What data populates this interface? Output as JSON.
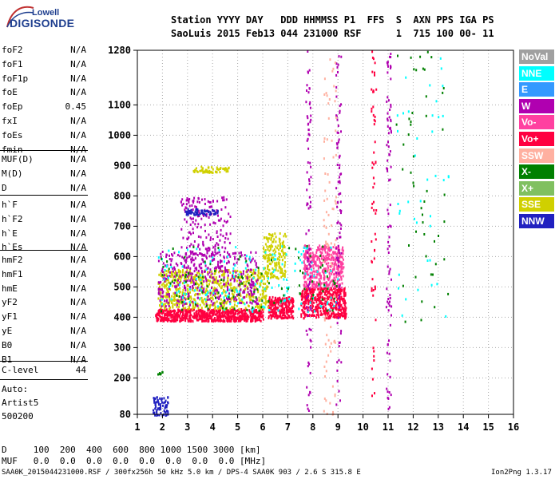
{
  "logo": {
    "line1": "Lowell",
    "line2": "DIGISONDE"
  },
  "header": {
    "line1": "Station YYYY DAY   DDD HHMMSS P1  FFS  S  AXN PPS IGA PS",
    "line2": "SaoLuis 2015 Feb13 044 231000 RSF      1  715 100 00- 11"
  },
  "params_a": [
    {
      "name": "foF2",
      "value": "N/A"
    },
    {
      "name": "foF1",
      "value": "N/A"
    },
    {
      "name": "foF1p",
      "value": "N/A"
    },
    {
      "name": "foE",
      "value": "N/A"
    },
    {
      "name": "foEp",
      "value": "0.45"
    },
    {
      "name": "fxI",
      "value": "N/A"
    },
    {
      "name": "foEs",
      "value": "N/A"
    },
    {
      "name": "fmin",
      "value": "N/A"
    }
  ],
  "params_b": [
    {
      "name": "MUF(D)",
      "value": "N/A"
    },
    {
      "name": "M(D)",
      "value": "N/A"
    },
    {
      "name": "D",
      "value": "N/A"
    }
  ],
  "params_c": [
    {
      "name": "h`F",
      "value": "N/A"
    },
    {
      "name": "h`F2",
      "value": "N/A"
    },
    {
      "name": "h`E",
      "value": "N/A"
    },
    {
      "name": "h`Es",
      "value": "N/A"
    }
  ],
  "params_d": [
    {
      "name": "hmF2",
      "value": "N/A"
    },
    {
      "name": "hmF1",
      "value": "N/A"
    },
    {
      "name": "hmE",
      "value": "N/A"
    },
    {
      "name": "yF2",
      "value": "N/A"
    },
    {
      "name": "yF1",
      "value": "N/A"
    },
    {
      "name": "yE",
      "value": "N/A"
    },
    {
      "name": "B0",
      "value": "N/A"
    },
    {
      "name": "B1",
      "value": "N/A"
    }
  ],
  "clevel": {
    "name": "C-level",
    "value": "44"
  },
  "auto": {
    "line1": "Auto:",
    "line2": "Artist5",
    "line3": "500200"
  },
  "footer": {
    "d_row": "D     100  200  400  600  800 1000 1500 3000 [km]",
    "muf_row": "MUF   0.0  0.0  0.0  0.0  0.0  0.0  0.0  0.0 [MHz]",
    "file_line": "SAA0K_2015044231000.RSF / 300fx256h 50 kHz 5.0 km / DPS-4 SAA0K 903 / 2.6 S 315.8 E",
    "version": "Ion2Png 1.3.17"
  },
  "legend": [
    {
      "label": "NoVal",
      "color": "#a0a0a0"
    },
    {
      "label": "NNE",
      "color": "#00ffff"
    },
    {
      "label": "E",
      "color": "#3399ff"
    },
    {
      "label": "W",
      "color": "#b000b0"
    },
    {
      "label": "Vo-",
      "color": "#ff40a0"
    },
    {
      "label": "Vo+",
      "color": "#ff0040"
    },
    {
      "label": "SSW",
      "color": "#ffb0a0"
    },
    {
      "label": "X-",
      "color": "#008000"
    },
    {
      "label": "X+",
      "color": "#80c060"
    },
    {
      "label": "SSE",
      "color": "#d0d000"
    },
    {
      "label": "NNW",
      "color": "#2020c0"
    }
  ],
  "chart_data": {
    "type": "scatter",
    "title": "",
    "xlabel": "",
    "ylabel": "",
    "xlim": [
      1,
      16
    ],
    "ylim": [
      80,
      1280
    ],
    "x_ticks": [
      1,
      2,
      3,
      4,
      5,
      6,
      7,
      8,
      9,
      10,
      11,
      12,
      13,
      14,
      15,
      16
    ],
    "y_ticks": [
      80,
      200,
      300,
      400,
      500,
      600,
      700,
      800,
      900,
      1000,
      1100,
      1280
    ],
    "grid": true,
    "legend_placement": "right",
    "regions": [
      {
        "color": "#ff0040",
        "x": [
          1.7,
          6.0
        ],
        "y": [
          390,
          430
        ],
        "density": 700
      },
      {
        "color": "#ff0040",
        "x": [
          6.2,
          7.2
        ],
        "y": [
          400,
          470
        ],
        "density": 250
      },
      {
        "color": "#ff0040",
        "x": [
          7.5,
          9.3
        ],
        "y": [
          400,
          500
        ],
        "density": 450
      },
      {
        "color": "#d0d000",
        "x": [
          1.8,
          6.2
        ],
        "y": [
          430,
          560
        ],
        "density": 650
      },
      {
        "color": "#d0d000",
        "x": [
          6.0,
          6.9
        ],
        "y": [
          530,
          680
        ],
        "density": 180
      },
      {
        "color": "#ff40a0",
        "x": [
          7.6,
          9.2
        ],
        "y": [
          500,
          640
        ],
        "density": 420
      },
      {
        "color": "#b000b0",
        "x": [
          1.8,
          5.8
        ],
        "y": [
          440,
          620
        ],
        "density": 350
      },
      {
        "color": "#b000b0",
        "x": [
          2.7,
          4.7
        ],
        "y": [
          550,
          800
        ],
        "density": 220
      },
      {
        "color": "#2020c0",
        "x": [
          2.9,
          4.2
        ],
        "y": [
          740,
          760
        ],
        "density": 60
      },
      {
        "color": "#d0d000",
        "x": [
          3.2,
          4.7
        ],
        "y": [
          880,
          900
        ],
        "density": 60
      },
      {
        "color": "#00ffff",
        "x": [
          1.8,
          9.0
        ],
        "y": [
          420,
          640
        ],
        "density": 150
      },
      {
        "color": "#008000",
        "x": [
          1.8,
          9.0
        ],
        "y": [
          420,
          640
        ],
        "density": 110
      },
      {
        "color": "#b000b0",
        "x": [
          7.7,
          7.9
        ],
        "y": [
          80,
          1280
        ],
        "density": 90
      },
      {
        "color": "#b000b0",
        "x": [
          8.9,
          9.1
        ],
        "y": [
          80,
          1280
        ],
        "density": 90
      },
      {
        "color": "#b000b0",
        "x": [
          10.9,
          11.1
        ],
        "y": [
          80,
          1280
        ],
        "density": 90
      },
      {
        "color": "#ffb0a0",
        "x": [
          8.4,
          8.9
        ],
        "y": [
          80,
          1280
        ],
        "density": 90
      },
      {
        "color": "#ff0040",
        "x": [
          10.3,
          10.5
        ],
        "y": [
          80,
          1280
        ],
        "density": 60
      },
      {
        "color": "#008000",
        "x": [
          11.3,
          13.4
        ],
        "y": [
          380,
          1280
        ],
        "density": 50
      },
      {
        "color": "#00ffff",
        "x": [
          11.3,
          13.4
        ],
        "y": [
          380,
          1280
        ],
        "density": 40
      },
      {
        "color": "#2020c0",
        "x": [
          1.6,
          2.2
        ],
        "y": [
          80,
          140
        ],
        "density": 70
      },
      {
        "color": "#008000",
        "x": [
          1.7,
          2.0
        ],
        "y": [
          210,
          225
        ],
        "density": 8
      }
    ]
  }
}
